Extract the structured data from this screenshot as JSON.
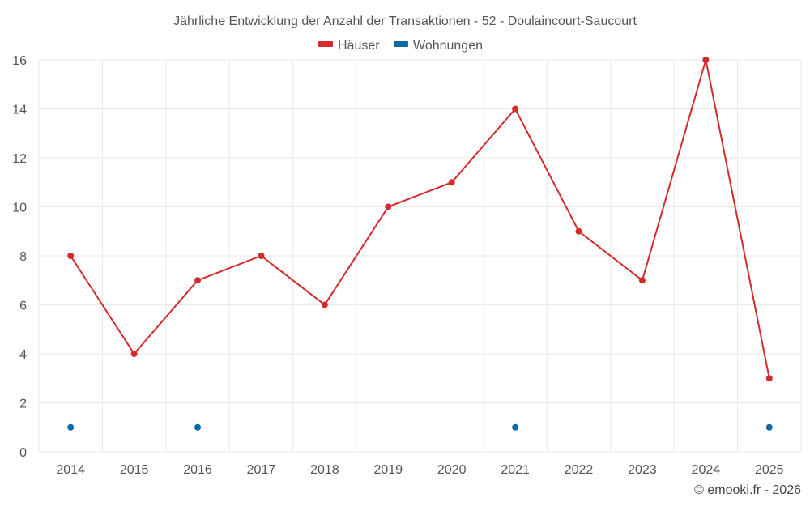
{
  "chart_data": {
    "type": "line",
    "title": "Jährliche Entwicklung der Anzahl der Transaktionen - 52 - Doulaincourt-Saucourt",
    "categories": [
      "2014",
      "2015",
      "2016",
      "2017",
      "2018",
      "2019",
      "2020",
      "2021",
      "2022",
      "2023",
      "2024",
      "2025"
    ],
    "series": [
      {
        "name": "Häuser",
        "color": "#d32a2a",
        "values": [
          8,
          4,
          7,
          8,
          6,
          10,
          11,
          14,
          9,
          7,
          16,
          3
        ]
      },
      {
        "name": "Wohnungen",
        "color": "#0a6aa8",
        "values": [
          1,
          null,
          1,
          null,
          null,
          null,
          null,
          1,
          null,
          null,
          null,
          1
        ]
      }
    ],
    "ylim": [
      0,
      16
    ],
    "yticks": [
      0,
      2,
      4,
      6,
      8,
      10,
      12,
      14,
      16
    ],
    "xlabel": "",
    "ylabel": "",
    "grid": true,
    "legend": "top-center"
  },
  "credit": "© emooki.fr - 2026"
}
